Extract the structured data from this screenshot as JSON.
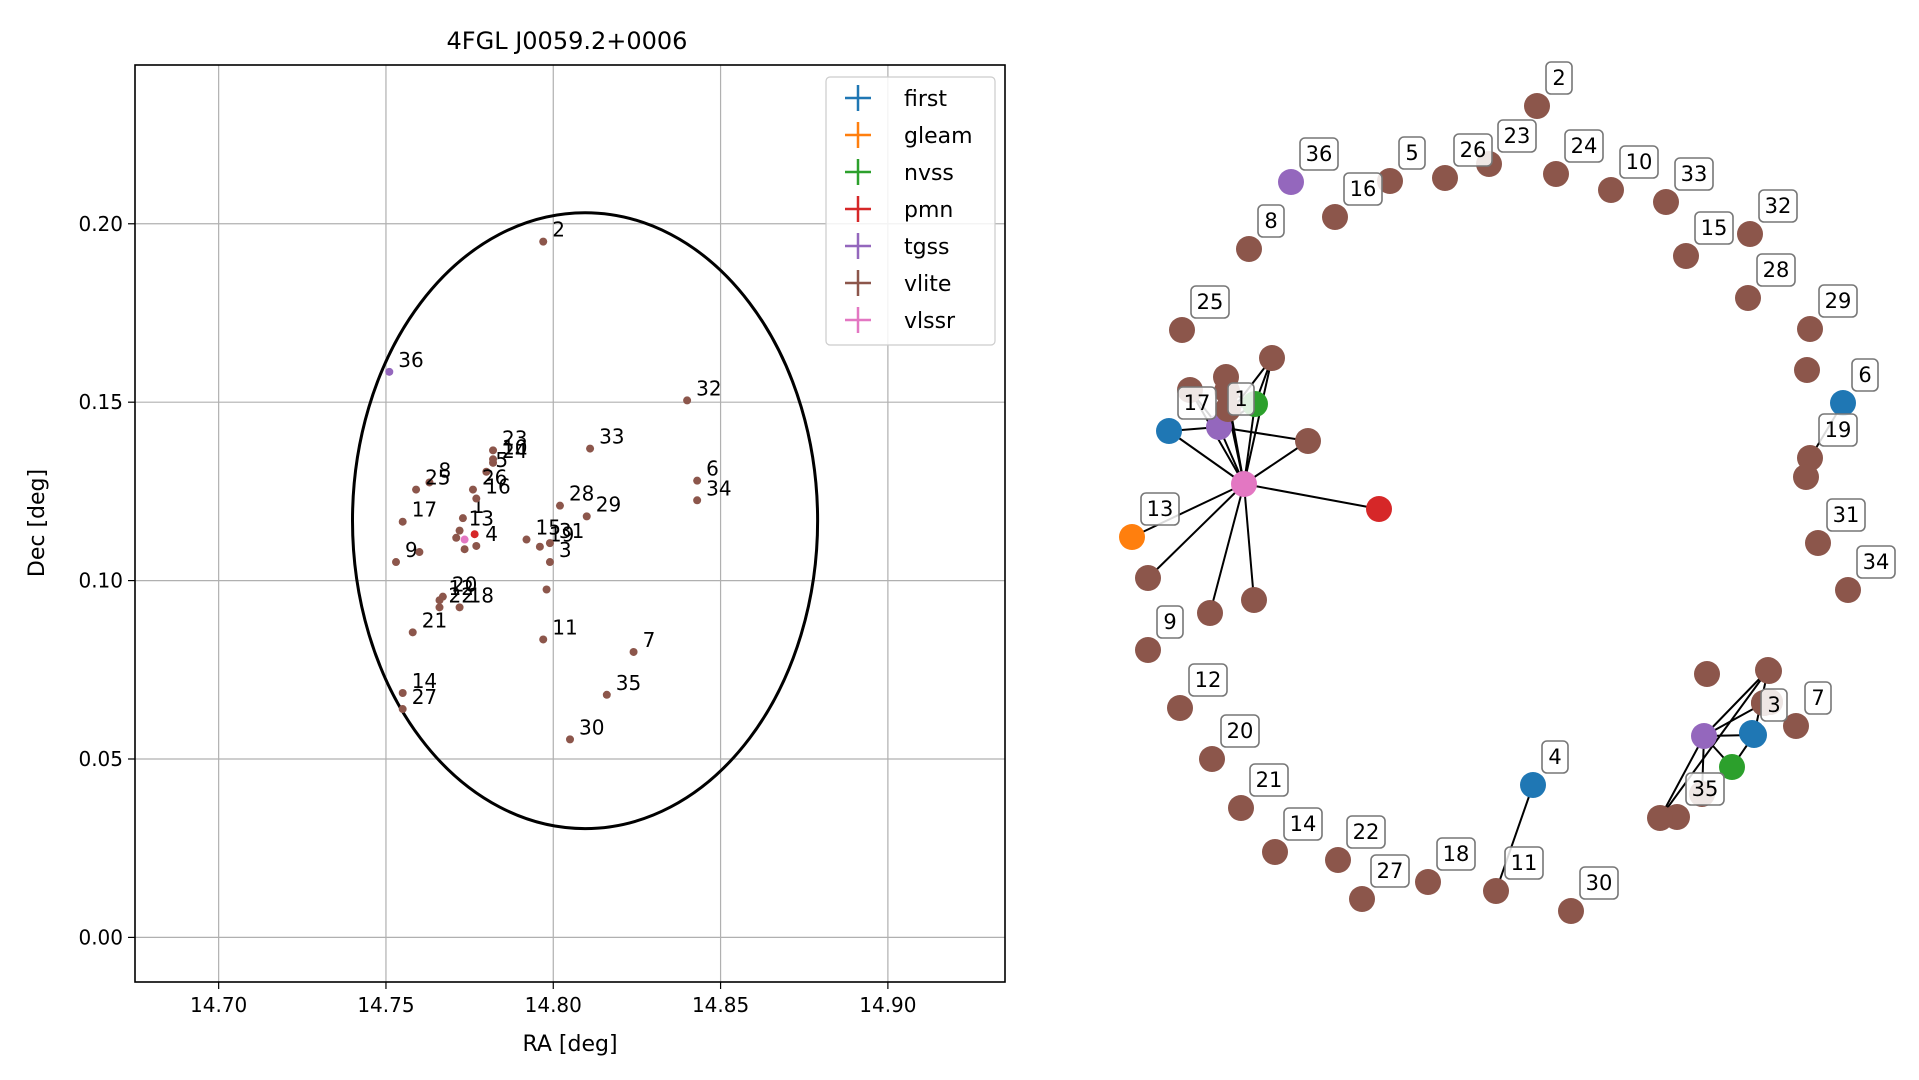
{
  "colors": {
    "first": "#1f77b4",
    "gleam": "#ff7f0e",
    "nvss": "#2ca02c",
    "pmn": "#d62728",
    "tgss": "#9467bd",
    "vlite": "#8c564b",
    "vlssr": "#e377c2",
    "grid": "#b0b0b0",
    "ellipse": "#000000"
  },
  "chart_data": [
    {
      "type": "scatter",
      "title": "4FGL J0059.2+0006",
      "xlabel": "RA [deg]",
      "ylabel": "Dec [deg]",
      "xlim": [
        14.675,
        14.935
      ],
      "ylim": [
        -0.0125,
        0.2445
      ],
      "xticks": [
        14.7,
        14.75,
        14.8,
        14.85,
        14.9
      ],
      "xtick_labels": [
        "14.70",
        "14.75",
        "14.80",
        "14.85",
        "14.90"
      ],
      "yticks": [
        0.0,
        0.05,
        0.1,
        0.15,
        0.2
      ],
      "ytick_labels": [
        "0.00",
        "0.05",
        "0.10",
        "0.15",
        "0.20"
      ],
      "grid": true,
      "legend_position": "top-right",
      "legend": [
        "first",
        "gleam",
        "nvss",
        "pmn",
        "tgss",
        "vlite",
        "vlssr"
      ],
      "ellipse": {
        "center": [
          14.8095,
          0.1168
        ],
        "semi_axis_ra": 0.0695,
        "semi_axis_dec": 0.0863
      },
      "points": [
        {
          "label": "1",
          "x": 14.773,
          "y": 0.1175,
          "survey": "vlite"
        },
        {
          "label": "2",
          "x": 14.797,
          "y": 0.195,
          "survey": "vlite"
        },
        {
          "label": "3",
          "x": 14.799,
          "y": 0.1052,
          "survey": "vlite"
        },
        {
          "label": "4",
          "x": 14.777,
          "y": 0.1097,
          "survey": "vlite"
        },
        {
          "label": "5",
          "x": 14.78,
          "y": 0.1305,
          "survey": "vlite"
        },
        {
          "label": "6",
          "x": 14.843,
          "y": 0.128,
          "survey": "vlite"
        },
        {
          "label": "7",
          "x": 14.824,
          "y": 0.08,
          "survey": "vlite"
        },
        {
          "label": "8",
          "x": 14.763,
          "y": 0.1275,
          "survey": "vlite"
        },
        {
          "label": "9",
          "x": 14.753,
          "y": 0.1052,
          "survey": "vlite"
        },
        {
          "label": "10",
          "x": 14.782,
          "y": 0.134,
          "survey": "vlite"
        },
        {
          "label": "11",
          "x": 14.797,
          "y": 0.0835,
          "survey": "vlite"
        },
        {
          "label": "12",
          "x": 14.766,
          "y": 0.0945,
          "survey": "vlite"
        },
        {
          "label": "13",
          "x": 14.772,
          "y": 0.114,
          "survey": "vlite"
        },
        {
          "label": "14",
          "x": 14.755,
          "y": 0.0685,
          "survey": "vlite"
        },
        {
          "label": "15",
          "x": 14.792,
          "y": 0.1115,
          "survey": "vlite"
        },
        {
          "label": "16",
          "x": 14.777,
          "y": 0.123,
          "survey": "vlite"
        },
        {
          "label": "17",
          "x": 14.755,
          "y": 0.1165,
          "survey": "vlite"
        },
        {
          "label": "18",
          "x": 14.772,
          "y": 0.0925,
          "survey": "vlite"
        },
        {
          "label": "19",
          "x": 14.796,
          "y": 0.1095,
          "survey": "vlite"
        },
        {
          "label": "20",
          "x": 14.767,
          "y": 0.0955,
          "survey": "vlite"
        },
        {
          "label": "21",
          "x": 14.758,
          "y": 0.0855,
          "survey": "vlite"
        },
        {
          "label": "22",
          "x": 14.766,
          "y": 0.0925,
          "survey": "vlite"
        },
        {
          "label": "23",
          "x": 14.782,
          "y": 0.1365,
          "survey": "vlite"
        },
        {
          "label": "24",
          "x": 14.782,
          "y": 0.133,
          "survey": "vlite"
        },
        {
          "label": "25",
          "x": 14.759,
          "y": 0.1255,
          "survey": "vlite"
        },
        {
          "label": "26",
          "x": 14.776,
          "y": 0.1255,
          "survey": "vlite"
        },
        {
          "label": "27",
          "x": 14.755,
          "y": 0.064,
          "survey": "vlite"
        },
        {
          "label": "28",
          "x": 14.802,
          "y": 0.121,
          "survey": "vlite"
        },
        {
          "label": "29",
          "x": 14.81,
          "y": 0.118,
          "survey": "vlite"
        },
        {
          "label": "30",
          "x": 14.805,
          "y": 0.0555,
          "survey": "vlite"
        },
        {
          "label": "31",
          "x": 14.799,
          "y": 0.1105,
          "survey": "vlite"
        },
        {
          "label": "32",
          "x": 14.84,
          "y": 0.1505,
          "survey": "vlite"
        },
        {
          "label": "33",
          "x": 14.811,
          "y": 0.137,
          "survey": "vlite"
        },
        {
          "label": "34",
          "x": 14.843,
          "y": 0.1225,
          "survey": "vlite"
        },
        {
          "label": "35",
          "x": 14.816,
          "y": 0.068,
          "survey": "vlite"
        },
        {
          "label": "36",
          "x": 14.751,
          "y": 0.1585,
          "survey": "tgss"
        },
        {
          "label": "",
          "x": 14.7765,
          "y": 0.113,
          "survey": "pmn"
        },
        {
          "label": "",
          "x": 14.7735,
          "y": 0.1115,
          "survey": "vlssr"
        },
        {
          "label": "",
          "x": 14.798,
          "y": 0.0975,
          "survey": "vlite"
        },
        {
          "label": "",
          "x": 14.7735,
          "y": 0.1088,
          "survey": "vlite"
        },
        {
          "label": "",
          "x": 14.771,
          "y": 0.112,
          "survey": "vlite"
        },
        {
          "label": "",
          "x": 14.76,
          "y": 0.108,
          "survey": "vlite"
        }
      ]
    },
    {
      "type": "network",
      "nodes": [
        {
          "label": "2",
          "survey": "vlite"
        },
        {
          "label": "36",
          "survey": "tgss"
        },
        {
          "label": "5",
          "survey": "vlite"
        },
        {
          "label": "26",
          "survey": "vlite"
        },
        {
          "label": "23",
          "survey": "vlite"
        },
        {
          "label": "24",
          "survey": "vlite"
        },
        {
          "label": "10",
          "survey": "vlite"
        },
        {
          "label": "33",
          "survey": "vlite"
        },
        {
          "label": "32",
          "survey": "vlite"
        },
        {
          "label": "16",
          "survey": "vlite"
        },
        {
          "label": "8",
          "survey": "vlite"
        },
        {
          "label": "15",
          "survey": "vlite"
        },
        {
          "label": "28",
          "survey": "vlite"
        },
        {
          "label": "25",
          "survey": "vlite"
        },
        {
          "label": "29",
          "survey": "vlite"
        },
        {
          "label": "6",
          "survey": "first"
        },
        {
          "label": "17",
          "survey": "first"
        },
        {
          "label": "1",
          "survey": "tgss"
        },
        {
          "label": "19",
          "survey": "vlite"
        },
        {
          "label": "13",
          "survey": "gleam"
        },
        {
          "label": "31",
          "survey": "vlite"
        },
        {
          "label": "34",
          "survey": "vlite"
        },
        {
          "label": "9",
          "survey": "vlite"
        },
        {
          "label": "12",
          "survey": "vlite"
        },
        {
          "label": "7",
          "survey": "vlite"
        },
        {
          "label": "3",
          "survey": "first"
        },
        {
          "label": "20",
          "survey": "vlite"
        },
        {
          "label": "4",
          "survey": "first"
        },
        {
          "label": "21",
          "survey": "vlite"
        },
        {
          "label": "35",
          "survey": "vlite"
        },
        {
          "label": "14",
          "survey": "vlite"
        },
        {
          "label": "22",
          "survey": "vlite"
        },
        {
          "label": "18",
          "survey": "vlite"
        },
        {
          "label": "11",
          "survey": "vlite"
        },
        {
          "label": "27",
          "survey": "vlite"
        },
        {
          "label": "30",
          "survey": "vlite"
        },
        {
          "label": "",
          "survey": "vlite"
        },
        {
          "label": "",
          "survey": "vlite"
        },
        {
          "label": "",
          "survey": "vlite"
        },
        {
          "label": "",
          "survey": "vlite"
        },
        {
          "label": "",
          "survey": "vlite"
        },
        {
          "label": "",
          "survey": "nvss"
        },
        {
          "label": "",
          "survey": "vlite"
        },
        {
          "label": "",
          "survey": "vlssr"
        },
        {
          "label": "",
          "survey": "pmn"
        },
        {
          "label": "",
          "survey": "vlite"
        },
        {
          "label": "",
          "survey": "vlite"
        },
        {
          "label": "",
          "survey": "vlite"
        },
        {
          "label": "",
          "survey": "vlite"
        },
        {
          "label": "",
          "survey": "first"
        },
        {
          "label": "",
          "survey": "vlite"
        },
        {
          "label": "",
          "survey": "vlite"
        },
        {
          "label": "",
          "survey": "vlite"
        },
        {
          "label": "",
          "survey": "tgss"
        },
        {
          "label": "",
          "survey": "nvss"
        },
        {
          "label": "",
          "survey": "vlite"
        },
        {
          "label": "",
          "survey": "vlite"
        },
        {
          "label": "",
          "survey": "vlite"
        },
        {
          "label": "",
          "survey": "vlite"
        },
        {
          "label": "",
          "survey": "vlite"
        },
        {
          "label": "",
          "survey": "vlite"
        },
        {
          "label": "",
          "survey": "vlite"
        }
      ]
    }
  ]
}
